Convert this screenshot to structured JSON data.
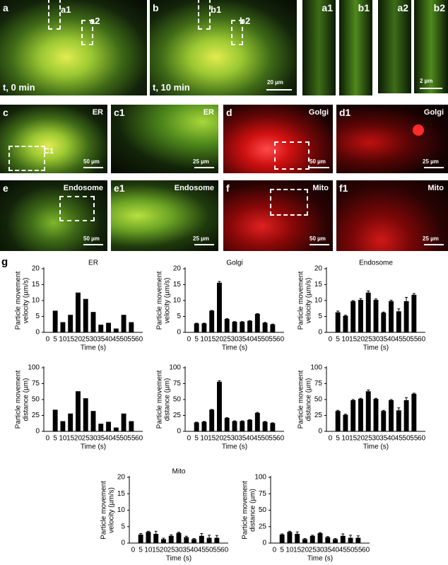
{
  "figure": {
    "panels": [
      {
        "label": "a",
        "texts": [
          "a1",
          "a2",
          "t, 0 min"
        ]
      },
      {
        "label": "b",
        "texts": [
          "b1",
          "b2",
          "t, 10 min",
          "20 µm"
        ]
      },
      {
        "label": "a1",
        "texts": []
      },
      {
        "label": "b1",
        "texts": []
      },
      {
        "label": "a2",
        "texts": []
      },
      {
        "label": "b2",
        "texts": [
          "2 µm"
        ]
      },
      {
        "label": "c",
        "texts": [
          "ER",
          "C1",
          "50 µm"
        ]
      },
      {
        "label": "c1",
        "texts": [
          "ER",
          "25 µm"
        ]
      },
      {
        "label": "d",
        "texts": [
          "Golgi",
          "50 µm"
        ]
      },
      {
        "label": "d1",
        "texts": [
          "Golgi",
          "25 µm"
        ]
      },
      {
        "label": "e",
        "texts": [
          "Endosome",
          "50 µm"
        ]
      },
      {
        "label": "e1",
        "texts": [
          "Endosome",
          "25 µm"
        ]
      },
      {
        "label": "f",
        "texts": [
          "Mito",
          "50 µm"
        ]
      },
      {
        "label": "f1",
        "texts": [
          "Mito",
          "25 µm"
        ]
      }
    ],
    "g_label": "g"
  },
  "chart_data": [
    {
      "type": "bar",
      "title": "ER",
      "ylabel": [
        "Particle movement",
        "velocity (µm/s)"
      ],
      "xlabel": "Time (s)",
      "categories": [
        "0",
        "5",
        "10",
        "15",
        "20",
        "25",
        "30",
        "35",
        "40",
        "45",
        "50",
        "55",
        "60"
      ],
      "values": [
        null,
        6.8,
        3.2,
        5.5,
        12.5,
        10.5,
        6.4,
        2.4,
        3.0,
        1.2,
        5.5,
        3.2,
        null
      ],
      "color": "#000000",
      "ylim": [
        0,
        20
      ],
      "yticks": [
        0,
        5,
        10,
        15,
        20
      ]
    },
    {
      "type": "bar",
      "title": "Golgi",
      "ylabel": [
        "Particle movement",
        "velocity (µm/s)"
      ],
      "xlabel": "Time (s)",
      "categories": [
        "0",
        "5",
        "10",
        "15",
        "20",
        "25",
        "30",
        "35",
        "40",
        "45",
        "50",
        "55",
        "60"
      ],
      "values": [
        null,
        2.8,
        2.8,
        6.8,
        15.6,
        4.2,
        3.3,
        3.3,
        3.6,
        5.8,
        3.0,
        2.5,
        null
      ],
      "errors": [
        null,
        0.1,
        0.1,
        0.1,
        0.4,
        0.1,
        0.1,
        0.1,
        0.1,
        0.1,
        0.1,
        0.1,
        null
      ],
      "color": "#000000",
      "ylim": [
        0,
        20
      ],
      "yticks": [
        0,
        5,
        10,
        15,
        20
      ]
    },
    {
      "type": "bar",
      "title": "Endosome",
      "ylabel": [
        "Particle movement",
        "velocity (µm/s)"
      ],
      "xlabel": "Time (s)",
      "categories": [
        "0",
        "5",
        "10",
        "15",
        "20",
        "25",
        "30",
        "35",
        "40",
        "45",
        "50",
        "55",
        "60"
      ],
      "values": [
        null,
        6.3,
        5.2,
        9.8,
        10.2,
        12.5,
        10.2,
        6.2,
        9.8,
        6.6,
        9.8,
        11.8,
        null
      ],
      "errors": [
        null,
        0.4,
        0.2,
        0.2,
        0.4,
        0.5,
        0.3,
        0.2,
        0.3,
        0.8,
        1.2,
        0.4,
        null
      ],
      "color": "#000000",
      "ylim": [
        0,
        20
      ],
      "yticks": [
        0,
        5,
        10,
        15,
        20
      ]
    },
    {
      "type": "bar",
      "ylabel": [
        "Particle movement",
        "distance (µm)"
      ],
      "xlabel": "Time (s)",
      "categories": [
        "0",
        "5",
        "10",
        "15",
        "20",
        "25",
        "30",
        "35",
        "40",
        "45",
        "50",
        "55",
        "60"
      ],
      "values": [
        null,
        34,
        16,
        28,
        63,
        52,
        32,
        12,
        15,
        6,
        28,
        16,
        null
      ],
      "color": "#000000",
      "ylim": [
        0,
        100
      ],
      "yticks": [
        0,
        25,
        50,
        75,
        100
      ]
    },
    {
      "type": "bar",
      "ylabel": [
        "Particle movement",
        "distance (µm)"
      ],
      "xlabel": "Time (s)",
      "categories": [
        "0",
        "5",
        "10",
        "15",
        "20",
        "25",
        "30",
        "35",
        "40",
        "45",
        "50",
        "55",
        "60"
      ],
      "values": [
        null,
        14,
        15,
        34,
        78,
        21,
        16,
        16,
        18,
        29,
        15,
        13,
        null
      ],
      "errors": [
        null,
        0.5,
        0.5,
        0.5,
        1.5,
        0.5,
        0.5,
        0.5,
        0.5,
        0.8,
        0.5,
        0.5,
        null
      ],
      "color": "#000000",
      "ylim": [
        0,
        100
      ],
      "yticks": [
        0,
        25,
        50,
        75,
        100
      ]
    },
    {
      "type": "bar",
      "ylabel": [
        "Particle movement",
        "distance (µm)"
      ],
      "xlabel": "Time (s)",
      "categories": [
        "0",
        "5",
        "10",
        "15",
        "20",
        "25",
        "30",
        "35",
        "40",
        "45",
        "50",
        "55",
        "60"
      ],
      "values": [
        null,
        32,
        26,
        49,
        51,
        63,
        51,
        32,
        49,
        33,
        49,
        59,
        null
      ],
      "errors": [
        null,
        1,
        1,
        1,
        1,
        2,
        1,
        1,
        1,
        4,
        4,
        1,
        null
      ],
      "color": "#000000",
      "ylim": [
        0,
        100
      ],
      "yticks": [
        0,
        25,
        50,
        75,
        100
      ]
    },
    {
      "type": "bar",
      "title": "Mito",
      "ylabel": [
        "Particle movement",
        "velocity (µm/s)"
      ],
      "xlabel": "Time (s)",
      "categories": [
        "0",
        "5",
        "10",
        "15",
        "20",
        "25",
        "30",
        "35",
        "40",
        "45",
        "50",
        "55",
        "60"
      ],
      "values": [
        null,
        2.6,
        3.4,
        2.8,
        1.2,
        2.2,
        3.1,
        1.8,
        1.2,
        2.2,
        1.6,
        1.6,
        null
      ],
      "errors": [
        null,
        0.3,
        0.2,
        0.8,
        0.3,
        0.3,
        0.2,
        0.3,
        0.2,
        0.7,
        0.8,
        0.7,
        null
      ],
      "color": "#000000",
      "ylim": [
        0,
        20
      ],
      "yticks": [
        0,
        5,
        10,
        15,
        20
      ]
    },
    {
      "type": "bar",
      "ylabel": [
        "Particle movement",
        "distance (µm)"
      ],
      "xlabel": "Time (s)",
      "categories": [
        "0",
        "5",
        "10",
        "15",
        "20",
        "25",
        "30",
        "35",
        "40",
        "45",
        "50",
        "55",
        "60"
      ],
      "values": [
        null,
        13,
        17,
        14,
        6,
        11,
        15,
        9,
        6,
        11,
        8,
        8,
        null
      ],
      "errors": [
        null,
        1,
        1,
        3,
        1,
        1,
        1,
        1,
        1,
        3,
        4,
        3,
        null
      ],
      "color": "#000000",
      "ylim": [
        0,
        100
      ],
      "yticks": [
        0,
        25,
        50,
        75,
        100
      ]
    }
  ]
}
